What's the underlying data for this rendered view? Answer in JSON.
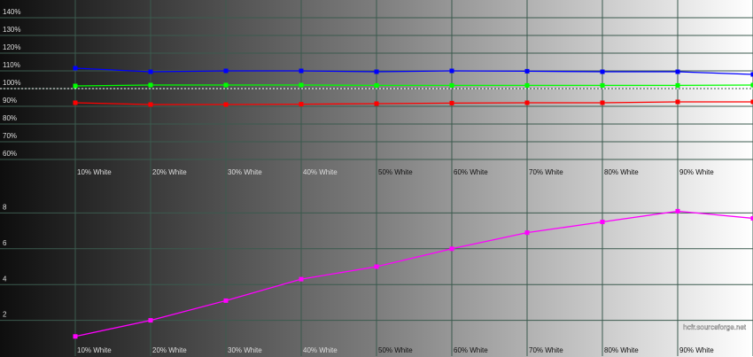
{
  "chart_data": [
    {
      "type": "line",
      "categories": [
        "10% White",
        "20% White",
        "30% White",
        "40% White",
        "50% White",
        "60% White",
        "70% White",
        "80% White",
        "90% White",
        null
      ],
      "series": [
        {
          "color": "#0000ff",
          "values": [
            111.5,
            109.5,
            110,
            110,
            109.5,
            110,
            109.8,
            109.5,
            109.5,
            108
          ]
        },
        {
          "color": "#00ff00",
          "values": [
            101.5,
            102,
            102,
            102,
            101.8,
            101.8,
            101.8,
            101.8,
            101.8,
            102
          ]
        },
        {
          "color": "#ff0000",
          "values": [
            92,
            91,
            91,
            91.2,
            91.5,
            91.8,
            92,
            92,
            92.5,
            92.5
          ]
        }
      ],
      "ylim": [
        50,
        150
      ],
      "yticks": [
        {
          "value": 60,
          "label": "60%"
        },
        {
          "value": 70,
          "label": "70%"
        },
        {
          "value": 80,
          "label": "80%"
        },
        {
          "value": 90,
          "label": "90%"
        },
        {
          "value": 100,
          "label": "100%"
        },
        {
          "value": 110,
          "label": "110%"
        },
        {
          "value": 120,
          "label": "120%"
        },
        {
          "value": 130,
          "label": "130%"
        },
        {
          "value": 140,
          "label": "140%"
        }
      ],
      "reference_line": 100,
      "grid": true
    },
    {
      "type": "line",
      "categories": [
        "10% White",
        "20% White",
        "30% White",
        "40% White",
        "50% White",
        "60% White",
        "70% White",
        "80% White",
        "90% White",
        null
      ],
      "series": [
        {
          "color": "#ff00ff",
          "values": [
            1.1,
            2.0,
            3.1,
            4.3,
            5.0,
            6.0,
            6.9,
            7.5,
            8.1,
            7.7
          ]
        }
      ],
      "ylim": [
        0,
        10
      ],
      "yticks": [
        2,
        4,
        6,
        8
      ],
      "annotation": "hcfr.sourceforge.net",
      "grid": true
    }
  ]
}
